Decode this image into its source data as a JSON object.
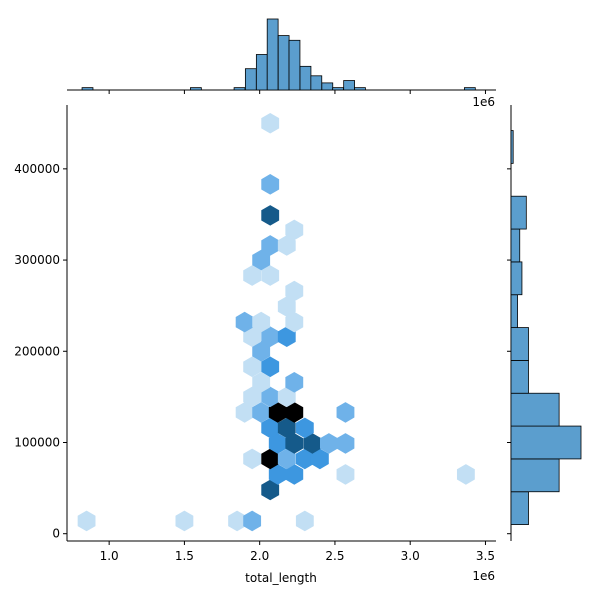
{
  "chart_data": {
    "type": "hexbin",
    "xlabel": "total_length",
    "ylabel": "",
    "x_offset_label": "1e6",
    "x_ticks": [
      {
        "value": 1.0,
        "label": "1.0"
      },
      {
        "value": 1.5,
        "label": "1.5"
      },
      {
        "value": 2.0,
        "label": "2.0"
      },
      {
        "value": 2.5,
        "label": "2.5"
      },
      {
        "value": 3.0,
        "label": "3.0"
      },
      {
        "value": 3.5,
        "label": "3.5"
      }
    ],
    "y_ticks": [
      {
        "value": 0,
        "label": "0"
      },
      {
        "value": 100000,
        "label": "100000"
      },
      {
        "value": 200000,
        "label": "200000"
      },
      {
        "value": 300000,
        "label": "300000"
      },
      {
        "value": 400000,
        "label": "400000"
      }
    ],
    "xlim": [
      0.72,
      3.57
    ],
    "ylim": [
      -8000,
      470000
    ],
    "colors": {
      "light": "#c2dff4",
      "mid": "#6fb2e9",
      "bright": "#3d97e0",
      "dark": "#155a8a",
      "darkest": "#000000",
      "hist_fill": "#5b9ece",
      "hist_edge": "#000000"
    },
    "hexbins": [
      {
        "x": 0.85,
        "y": 14000,
        "level": "light"
      },
      {
        "x": 1.5,
        "y": 14000,
        "level": "light"
      },
      {
        "x": 1.85,
        "y": 14000,
        "level": "light"
      },
      {
        "x": 1.95,
        "y": 14000,
        "level": "mid"
      },
      {
        "x": 2.3,
        "y": 14000,
        "level": "light"
      },
      {
        "x": 2.07,
        "y": 48000,
        "level": "dark"
      },
      {
        "x": 2.12,
        "y": 65000,
        "level": "bright"
      },
      {
        "x": 2.23,
        "y": 65000,
        "level": "bright"
      },
      {
        "x": 2.57,
        "y": 65000,
        "level": "light"
      },
      {
        "x": 3.37,
        "y": 65000,
        "level": "light"
      },
      {
        "x": 1.95,
        "y": 82000,
        "level": "light"
      },
      {
        "x": 2.07,
        "y": 82000,
        "level": "darkest"
      },
      {
        "x": 2.18,
        "y": 82000,
        "level": "mid"
      },
      {
        "x": 2.3,
        "y": 82000,
        "level": "bright"
      },
      {
        "x": 2.4,
        "y": 82000,
        "level": "bright"
      },
      {
        "x": 2.12,
        "y": 99000,
        "level": "bright"
      },
      {
        "x": 2.23,
        "y": 99000,
        "level": "dark"
      },
      {
        "x": 2.35,
        "y": 99000,
        "level": "dark"
      },
      {
        "x": 2.46,
        "y": 99000,
        "level": "mid"
      },
      {
        "x": 2.57,
        "y": 99000,
        "level": "mid"
      },
      {
        "x": 2.07,
        "y": 116000,
        "level": "bright"
      },
      {
        "x": 2.18,
        "y": 116000,
        "level": "dark"
      },
      {
        "x": 2.3,
        "y": 116000,
        "level": "bright"
      },
      {
        "x": 1.9,
        "y": 133000,
        "level": "light"
      },
      {
        "x": 2.01,
        "y": 133000,
        "level": "mid"
      },
      {
        "x": 2.12,
        "y": 133000,
        "level": "darkest"
      },
      {
        "x": 2.23,
        "y": 133000,
        "level": "darkest"
      },
      {
        "x": 2.57,
        "y": 133000,
        "level": "mid"
      },
      {
        "x": 1.95,
        "y": 150000,
        "level": "light"
      },
      {
        "x": 2.07,
        "y": 150000,
        "level": "mid"
      },
      {
        "x": 2.18,
        "y": 150000,
        "level": "light"
      },
      {
        "x": 2.01,
        "y": 166000,
        "level": "light"
      },
      {
        "x": 2.23,
        "y": 166000,
        "level": "mid"
      },
      {
        "x": 1.95,
        "y": 183000,
        "level": "light"
      },
      {
        "x": 2.07,
        "y": 183000,
        "level": "bright"
      },
      {
        "x": 2.01,
        "y": 200000,
        "level": "mid"
      },
      {
        "x": 1.95,
        "y": 216000,
        "level": "light"
      },
      {
        "x": 2.07,
        "y": 216000,
        "level": "mid"
      },
      {
        "x": 2.18,
        "y": 216000,
        "level": "bright"
      },
      {
        "x": 1.9,
        "y": 232000,
        "level": "mid"
      },
      {
        "x": 2.01,
        "y": 232000,
        "level": "light"
      },
      {
        "x": 2.23,
        "y": 232000,
        "level": "light"
      },
      {
        "x": 2.18,
        "y": 249000,
        "level": "light"
      },
      {
        "x": 2.23,
        "y": 266000,
        "level": "light"
      },
      {
        "x": 1.95,
        "y": 283000,
        "level": "light"
      },
      {
        "x": 2.07,
        "y": 283000,
        "level": "light"
      },
      {
        "x": 2.01,
        "y": 300000,
        "level": "mid"
      },
      {
        "x": 2.07,
        "y": 316000,
        "level": "mid"
      },
      {
        "x": 2.18,
        "y": 316000,
        "level": "light"
      },
      {
        "x": 2.23,
        "y": 333000,
        "level": "light"
      },
      {
        "x": 2.07,
        "y": 349000,
        "level": "dark"
      },
      {
        "x": 2.07,
        "y": 383000,
        "level": "mid"
      },
      {
        "x": 2.07,
        "y": 450000,
        "level": "light"
      }
    ],
    "x_histogram": {
      "bin_width": 0.0725,
      "bins": [
        {
          "x0": 0.82,
          "count": 1
        },
        {
          "x0": 1.54,
          "count": 1
        },
        {
          "x0": 1.83,
          "count": 1
        },
        {
          "x0": 1.905,
          "count": 9
        },
        {
          "x0": 1.978,
          "count": 15
        },
        {
          "x0": 2.05,
          "count": 30
        },
        {
          "x0": 2.123,
          "count": 23
        },
        {
          "x0": 2.195,
          "count": 21
        },
        {
          "x0": 2.268,
          "count": 10
        },
        {
          "x0": 2.34,
          "count": 6
        },
        {
          "x0": 2.413,
          "count": 3
        },
        {
          "x0": 2.485,
          "count": 1
        },
        {
          "x0": 2.558,
          "count": 4
        },
        {
          "x0": 2.63,
          "count": 1
        },
        {
          "x0": 3.36,
          "count": 1
        }
      ]
    },
    "y_histogram": {
      "bins": [
        {
          "y0": 10000,
          "y1": 46000,
          "count": 4
        },
        {
          "y0": 46000,
          "y1": 82000,
          "count": 11
        },
        {
          "y0": 82000,
          "y1": 118000,
          "count": 16
        },
        {
          "y0": 118000,
          "y1": 154000,
          "count": 11
        },
        {
          "y0": 154000,
          "y1": 190000,
          "count": 4
        },
        {
          "y0": 190000,
          "y1": 226000,
          "count": 4
        },
        {
          "y0": 226000,
          "y1": 262000,
          "count": 1.5
        },
        {
          "y0": 262000,
          "y1": 298000,
          "count": 2.5
        },
        {
          "y0": 298000,
          "y1": 334000,
          "count": 2
        },
        {
          "y0": 334000,
          "y1": 370000,
          "count": 3.5
        },
        {
          "y0": 370000,
          "y1": 406000,
          "count": 0
        },
        {
          "y0": 406000,
          "y1": 442000,
          "count": 0.5
        }
      ]
    }
  }
}
